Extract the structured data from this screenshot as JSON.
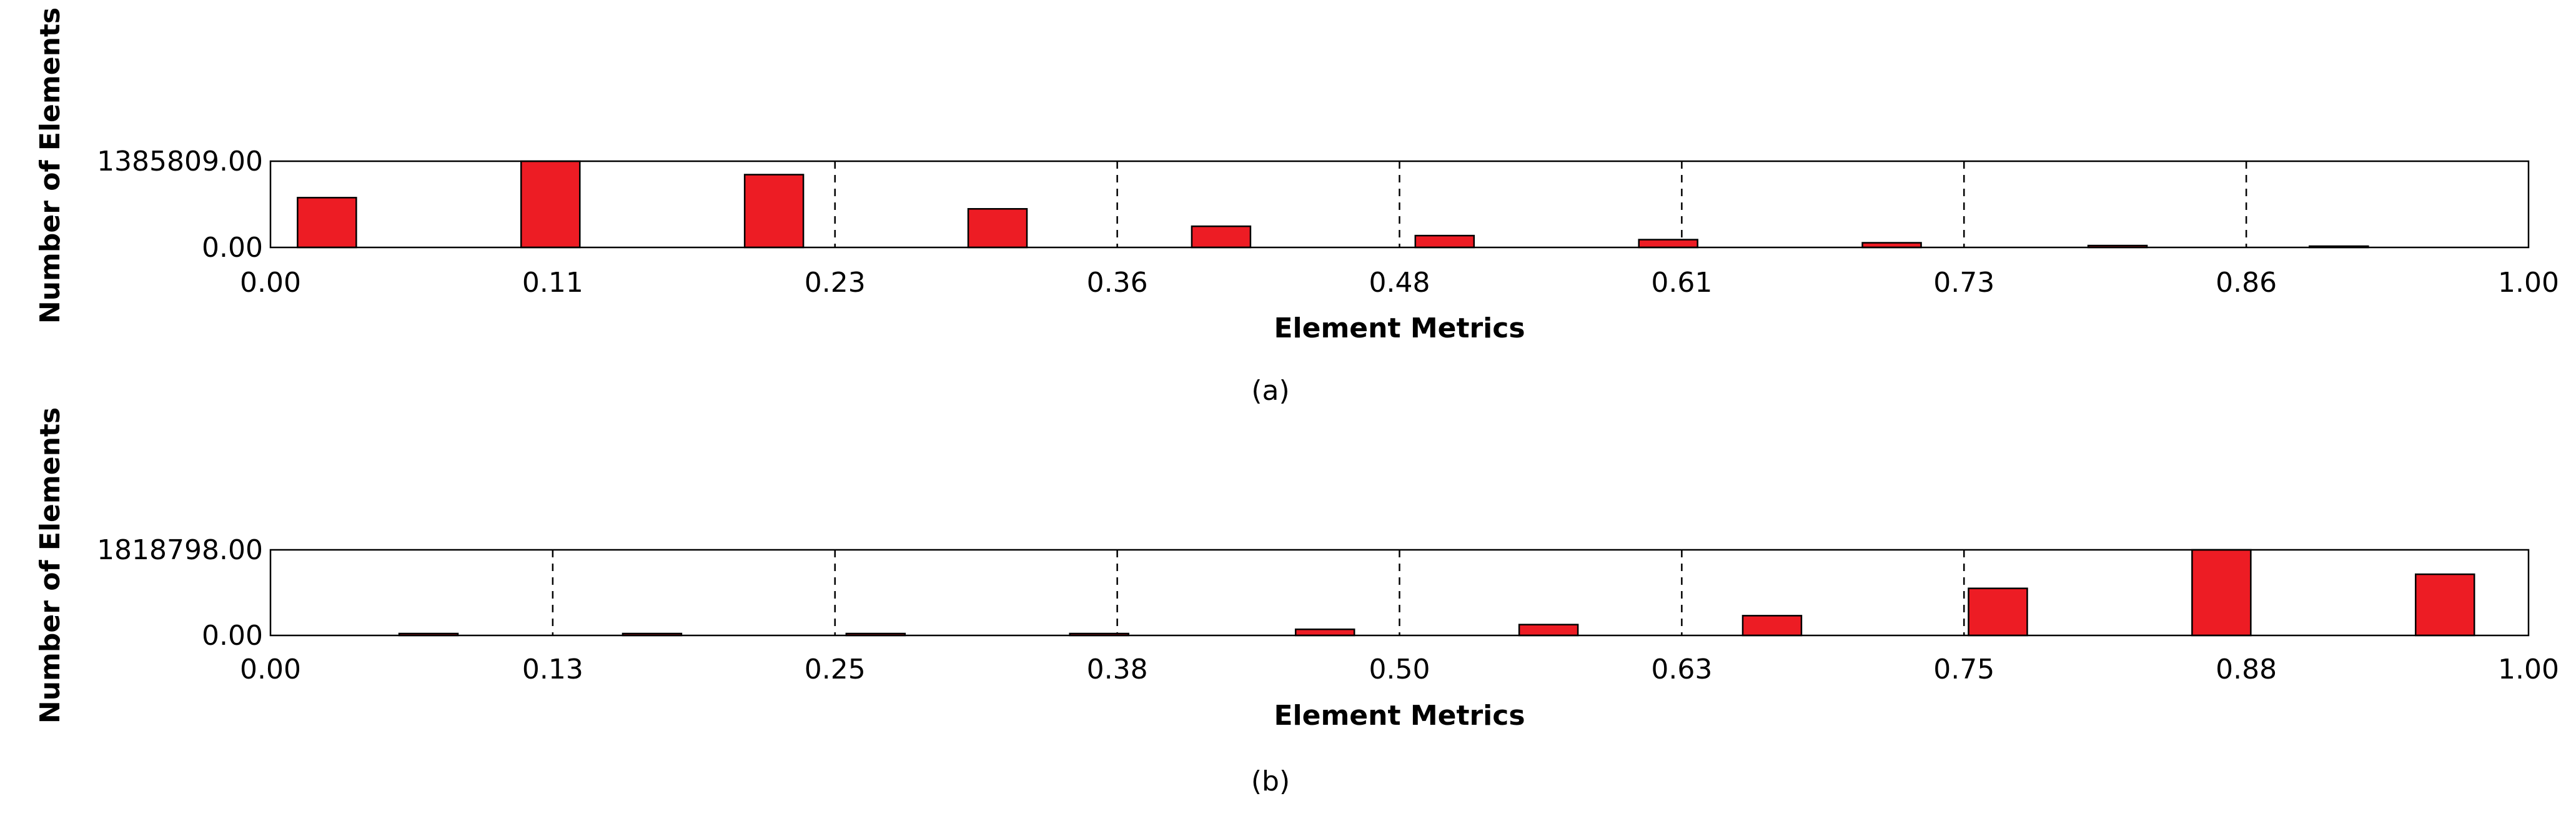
{
  "chart_data": [
    {
      "type": "bar",
      "panel_caption": "(a)",
      "xlabel": "Element Metrics",
      "ylabel": "Number of Elements",
      "ylim": [
        0,
        1385809
      ],
      "y_ticks": [
        "0.00",
        "1385809.00"
      ],
      "xlim": [
        0,
        1
      ],
      "x_ticks": [
        "0.00",
        "0.11",
        "0.23",
        "0.36",
        "0.48",
        "0.61",
        "0.73",
        "0.86",
        "1.00"
      ],
      "bar_width": 0.026,
      "grid": "vertical dashed",
      "bins": [
        {
          "x": 0.025,
          "value": 800000
        },
        {
          "x": 0.124,
          "value": 1385809
        },
        {
          "x": 0.223,
          "value": 1170000
        },
        {
          "x": 0.322,
          "value": 620000
        },
        {
          "x": 0.421,
          "value": 340000
        },
        {
          "x": 0.52,
          "value": 190000
        },
        {
          "x": 0.619,
          "value": 125000
        },
        {
          "x": 0.718,
          "value": 75000
        },
        {
          "x": 0.818,
          "value": 30000
        },
        {
          "x": 0.916,
          "value": 20000
        }
      ]
    },
    {
      "type": "bar",
      "panel_caption": "(b)",
      "xlabel": "Element Metrics",
      "ylabel": "Number of Elements",
      "ylim": [
        0,
        1818798
      ],
      "y_ticks": [
        "0.00",
        "1818798.00"
      ],
      "xlim": [
        0,
        1
      ],
      "x_ticks": [
        "0.00",
        "0.13",
        "0.25",
        "0.38",
        "0.50",
        "0.63",
        "0.75",
        "0.88",
        "1.00"
      ],
      "bar_width": 0.026,
      "grid": "vertical dashed",
      "bins": [
        {
          "x": 0.07,
          "value": 40000
        },
        {
          "x": 0.169,
          "value": 40000
        },
        {
          "x": 0.268,
          "value": 40000
        },
        {
          "x": 0.367,
          "value": 40000
        },
        {
          "x": 0.467,
          "value": 130000
        },
        {
          "x": 0.566,
          "value": 230000
        },
        {
          "x": 0.665,
          "value": 420000
        },
        {
          "x": 0.765,
          "value": 1000000
        },
        {
          "x": 0.864,
          "value": 1818798
        },
        {
          "x": 0.963,
          "value": 1300000
        }
      ]
    }
  ]
}
